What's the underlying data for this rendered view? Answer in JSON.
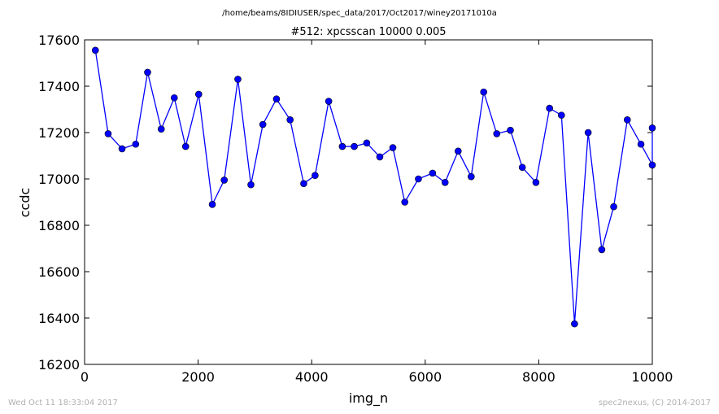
{
  "header": {
    "path": "/home/beams/8IDIUSER/spec_data/2017/Oct2017/winey20171010a"
  },
  "footer": {
    "left": "Wed Oct 11 18:33:04 2017",
    "right": "spec2nexus, (C) 2014-2017"
  },
  "colors": {
    "series": "#0000ff",
    "axis": "#000000",
    "footer_text": "#b0b0b0"
  },
  "chart_data": {
    "type": "line",
    "title": "#512: xpcsscan 10000 0.005",
    "xlabel": "img_n",
    "ylabel": "ccdc",
    "xlim": [
      0,
      10000
    ],
    "ylim": [
      16200,
      17600
    ],
    "xticks": [
      0,
      2000,
      4000,
      6000,
      8000,
      10000
    ],
    "yticks": [
      16200,
      16400,
      16600,
      16800,
      17000,
      17200,
      17400,
      17600
    ],
    "grid": false,
    "markers": "circle",
    "series": [
      {
        "x": [
          190,
          415,
          660,
          900,
          1110,
          1350,
          1580,
          1780,
          2010,
          2250,
          2460,
          2700,
          2930,
          3140,
          3380,
          3620,
          3860,
          4060,
          4300,
          4540,
          4750,
          4970,
          5200,
          5430,
          5640,
          5880,
          6130,
          6350,
          6580,
          6810,
          7030,
          7260,
          7500,
          7710,
          7950,
          8190,
          8400,
          8630,
          8870,
          9110,
          9320,
          9560,
          9800,
          10000,
          10000
        ],
        "y": [
          17555,
          17195,
          17130,
          17150,
          17460,
          17215,
          17350,
          17140,
          17365,
          16890,
          16995,
          17430,
          16975,
          17235,
          17345,
          17255,
          16980,
          17015,
          17335,
          17140,
          17140,
          17155,
          17095,
          17135,
          16900,
          17000,
          17025,
          16985,
          17120,
          17010,
          17375,
          17195,
          17210,
          17050,
          16985,
          17305,
          17275,
          16375,
          17200,
          16695,
          16880,
          17255,
          17150,
          17060,
          17220
        ]
      }
    ]
  }
}
